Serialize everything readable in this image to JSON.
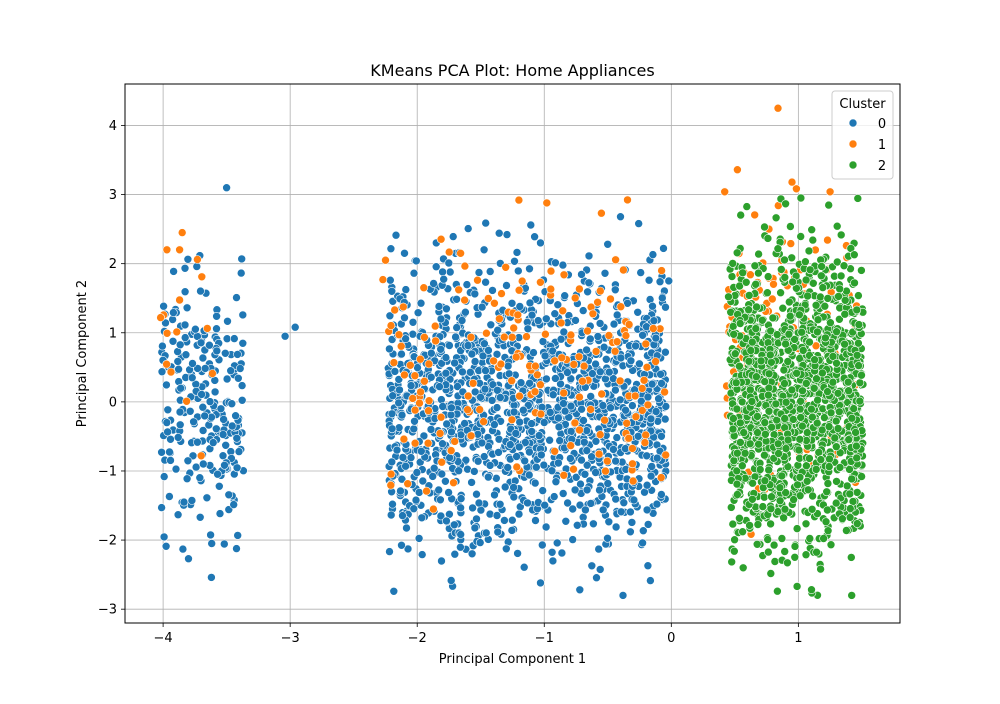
{
  "chart_data": {
    "type": "scatter",
    "title": "KMeans PCA Plot: Home Appliances",
    "xlabel": "Principal Component 1",
    "ylabel": "Principal Component 2",
    "xlim": [
      -4.3,
      1.8
    ],
    "ylim": [
      -3.2,
      4.6
    ],
    "xticks": [
      -4,
      -3,
      -2,
      -1,
      0,
      1
    ],
    "xtick_labels": [
      "−4",
      "−3",
      "−2",
      "−1",
      "0",
      "1"
    ],
    "yticks": [
      -3,
      -2,
      -1,
      0,
      1,
      2,
      3,
      4
    ],
    "ytick_labels": [
      "−3",
      "−2",
      "−1",
      "0",
      "1",
      "2",
      "3",
      "4"
    ],
    "grid": true,
    "legend": {
      "title": "Cluster",
      "placement": "top-right"
    },
    "series": [
      {
        "name": "0",
        "color": "#1f77b4",
        "groups": [
          {
            "x_range": [
              -4.02,
              -3.36
            ],
            "y_range": [
              -2.55,
              2.5
            ],
            "count": 240
          },
          {
            "x_range": [
              -2.25,
              -0.02
            ],
            "y_range": [
              -2.8,
              2.7
            ],
            "count": 1550
          }
        ],
        "points": [
          {
            "x": -3.5,
            "y": 3.1
          },
          {
            "x": -3.04,
            "y": 0.95
          },
          {
            "x": -2.96,
            "y": 1.08
          },
          {
            "x": -3.62,
            "y": -2.54
          },
          {
            "x": -3.8,
            "y": -2.27
          },
          {
            "x": -3.99,
            "y": 1.02
          },
          {
            "x": -0.72,
            "y": -2.72
          },
          {
            "x": -0.38,
            "y": -2.8
          },
          {
            "x": -1.03,
            "y": -2.62
          },
          {
            "x": -0.4,
            "y": 2.68
          },
          {
            "x": -0.02,
            "y": 1.75
          },
          {
            "x": -2.1,
            "y": 2.15
          },
          {
            "x": -1.85,
            "y": 2.3
          },
          {
            "x": -2.2,
            "y": 1.6
          }
        ]
      },
      {
        "name": "1",
        "color": "#ff7f0e",
        "groups": [
          {
            "x_range": [
              -4.02,
              -3.36
            ],
            "y_range": [
              -0.9,
              2.45
            ],
            "count": 10
          },
          {
            "x_range": [
              -2.25,
              -0.02
            ],
            "y_range": [
              -2.0,
              2.95
            ],
            "count": 170
          },
          {
            "x_range": [
              0.42,
              1.5
            ],
            "y_range": [
              -2.0,
              3.4
            ],
            "count": 160
          }
        ],
        "points": [
          {
            "x": 0.84,
            "y": 4.25
          },
          {
            "x": 0.52,
            "y": 3.36
          },
          {
            "x": 0.42,
            "y": 3.04
          },
          {
            "x": -4.02,
            "y": 1.22
          },
          {
            "x": -3.97,
            "y": 2.2
          },
          {
            "x": -3.87,
            "y": 2.2
          },
          {
            "x": -3.85,
            "y": 2.45
          },
          {
            "x": -3.73,
            "y": 2.06
          },
          {
            "x": -3.7,
            "y": -0.78
          },
          {
            "x": -2.25,
            "y": 2.05
          },
          {
            "x": -2.27,
            "y": 1.77
          },
          {
            "x": -1.2,
            "y": 2.92
          },
          {
            "x": -0.98,
            "y": 2.88
          },
          {
            "x": -0.55,
            "y": 2.73
          },
          {
            "x": 0.95,
            "y": 3.18
          },
          {
            "x": 1.25,
            "y": 3.04
          }
        ]
      },
      {
        "name": "2",
        "color": "#2ca02c",
        "groups": [
          {
            "x_range": [
              0.45,
              1.52
            ],
            "y_range": [
              -2.8,
              2.95
            ],
            "count": 1450
          }
        ],
        "points": [
          {
            "x": 1.02,
            "y": 2.95
          },
          {
            "x": 0.45,
            "y": 1.52
          },
          {
            "x": 1.42,
            "y": -2.8
          },
          {
            "x": 0.99,
            "y": -2.67
          },
          {
            "x": 1.44,
            "y": 2.13
          },
          {
            "x": 0.52,
            "y": -1.34
          }
        ]
      }
    ]
  }
}
